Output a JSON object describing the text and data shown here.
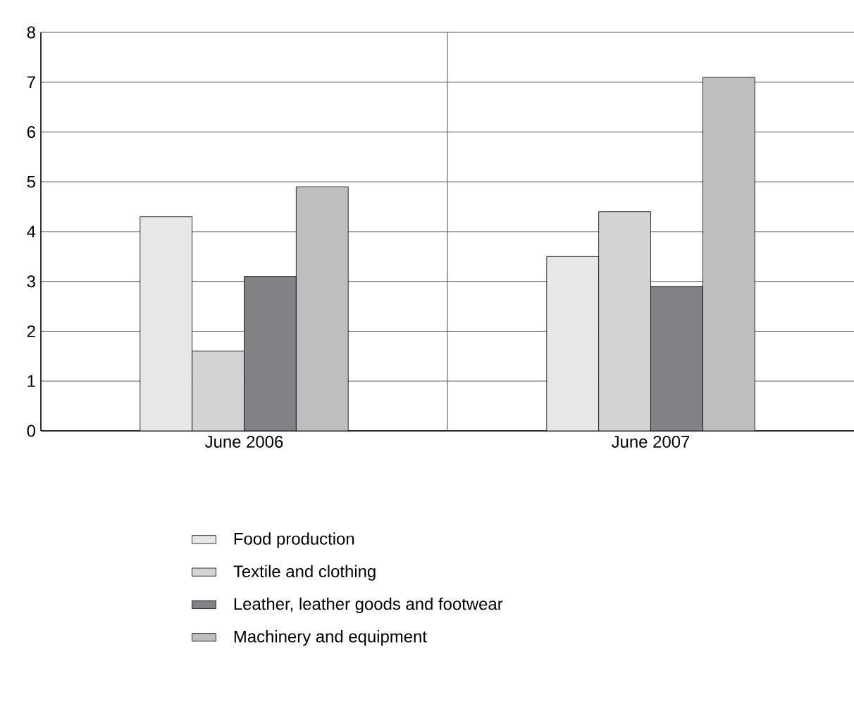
{
  "chart_data": {
    "type": "bar",
    "categories": [
      "June 2006",
      "June 2007"
    ],
    "series": [
      {
        "name": "Food production",
        "color": "#e6e7e8",
        "values": [
          4.3,
          3.5
        ]
      },
      {
        "name": "Textile and clothing",
        "color": "#d1d3d4",
        "values": [
          1.6,
          4.4
        ]
      },
      {
        "name": "Leather, leather goods and footwear",
        "color": "#808285",
        "values": [
          3.1,
          2.9
        ]
      },
      {
        "name": "Machinery and equipment",
        "color": "#bcbec0",
        "values": [
          4.9,
          7.1
        ]
      }
    ],
    "ylim": [
      0,
      8
    ],
    "yticks": [
      0,
      1,
      2,
      3,
      4,
      5,
      6,
      7,
      8
    ],
    "grid": "y",
    "legend": "bottom"
  }
}
